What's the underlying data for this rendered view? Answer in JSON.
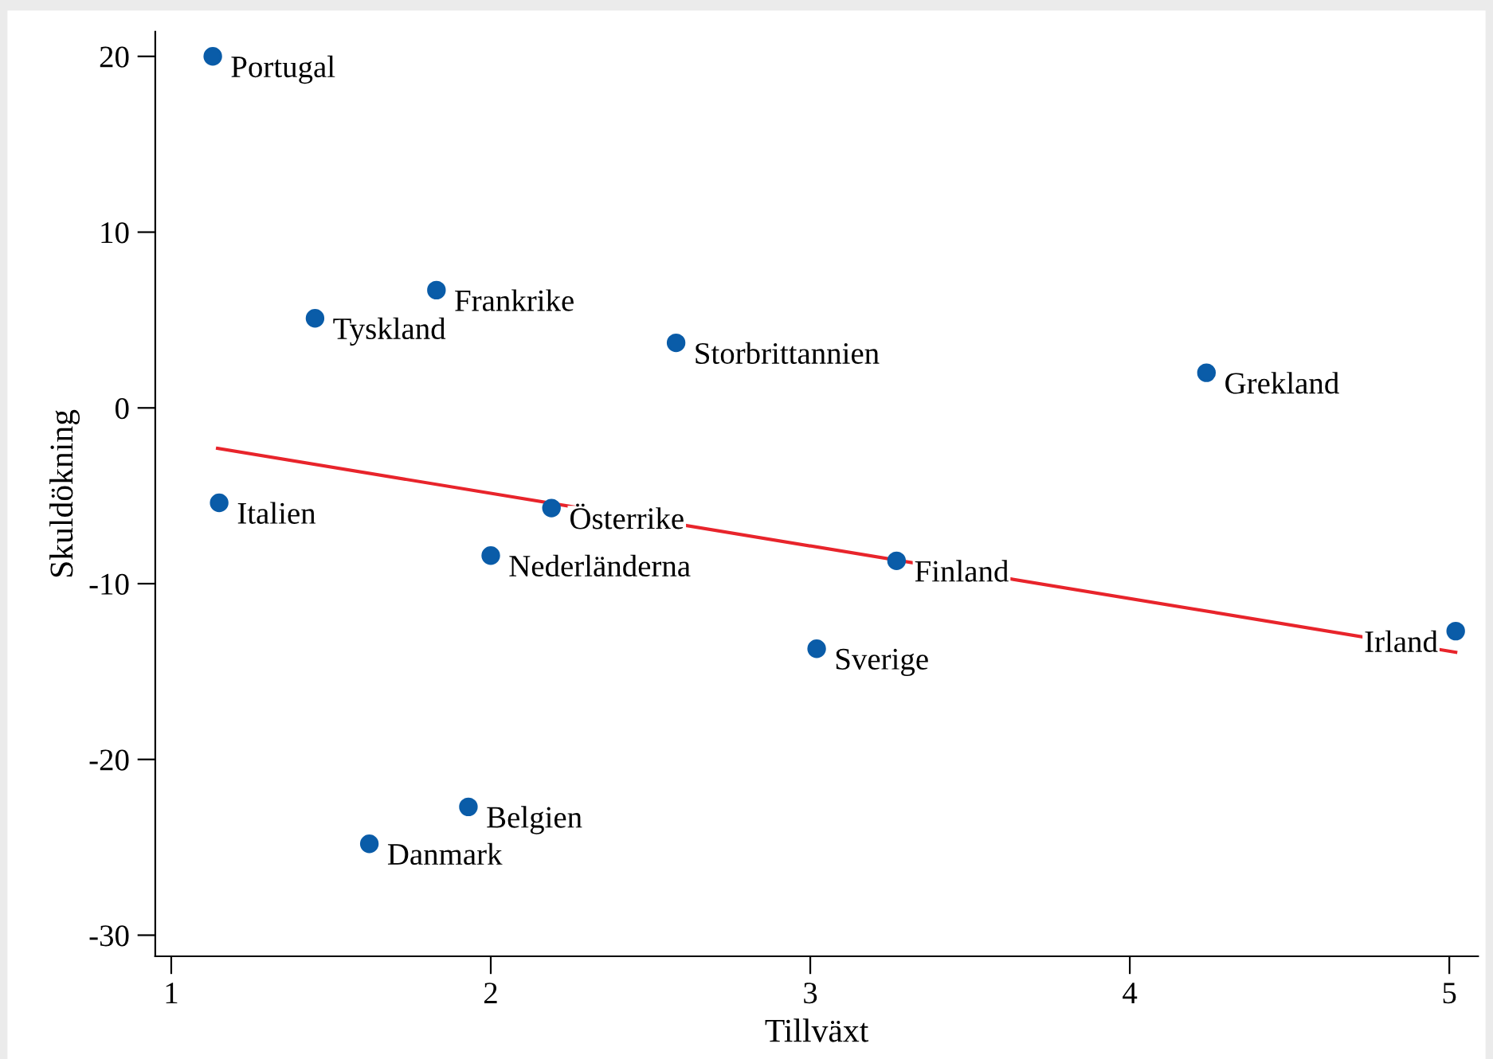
{
  "chart_data": {
    "type": "scatter",
    "xlabel": "Tillväxt",
    "ylabel": "Skuldökning",
    "series": [
      {
        "color": "#0a5ca8",
        "marker": "circle",
        "x": [
          1.13,
          1.83,
          1.45,
          2.58,
          4.24,
          1.15,
          2.19,
          2.0,
          3.27,
          3.02,
          5.02,
          1.93,
          1.62
        ],
        "values": [
          20.0,
          6.7,
          5.1,
          3.7,
          2.0,
          -5.4,
          -5.7,
          -8.4,
          -8.7,
          -13.7,
          -12.7,
          -22.7,
          -24.8
        ]
      },
      {
        "type": "line",
        "marker": "none",
        "color": "#e8242b",
        "x": [
          1.145,
          5.02
        ],
        "values": [
          -2.3,
          -13.9
        ]
      }
    ],
    "annotations": [
      {
        "text": "Portugal",
        "x": 1.13,
        "y": 20.0
      },
      {
        "text": "Frankrike",
        "x": 1.83,
        "y": 6.7
      },
      {
        "text": "Tyskland",
        "x": 1.45,
        "y": 5.1
      },
      {
        "text": "Storbrittannien",
        "x": 2.58,
        "y": 3.7
      },
      {
        "text": "Grekland",
        "x": 4.24,
        "y": 2.0
      },
      {
        "text": "Italien",
        "x": 1.15,
        "y": -5.4
      },
      {
        "text": "Österrike",
        "x": 2.19,
        "y": -5.7
      },
      {
        "text": "Nederländerna",
        "x": 2.0,
        "y": -8.4
      },
      {
        "text": "Finland",
        "x": 3.27,
        "y": -8.7
      },
      {
        "text": "Sverige",
        "x": 3.02,
        "y": -13.7
      },
      {
        "text": "Irland",
        "x": 5.02,
        "y": -12.7
      },
      {
        "text": "Belgien",
        "x": 1.93,
        "y": -22.7
      },
      {
        "text": "Danmark",
        "x": 1.62,
        "y": -24.8
      }
    ],
    "xlim": [
      0.95,
      5.09
    ],
    "ylim": [
      -31.2,
      21.4
    ],
    "xticks": [
      1,
      2,
      3,
      4,
      5
    ],
    "yticks": [
      -30,
      -20,
      -10,
      0,
      10,
      20
    ],
    "grid": false,
    "legend": false
  }
}
